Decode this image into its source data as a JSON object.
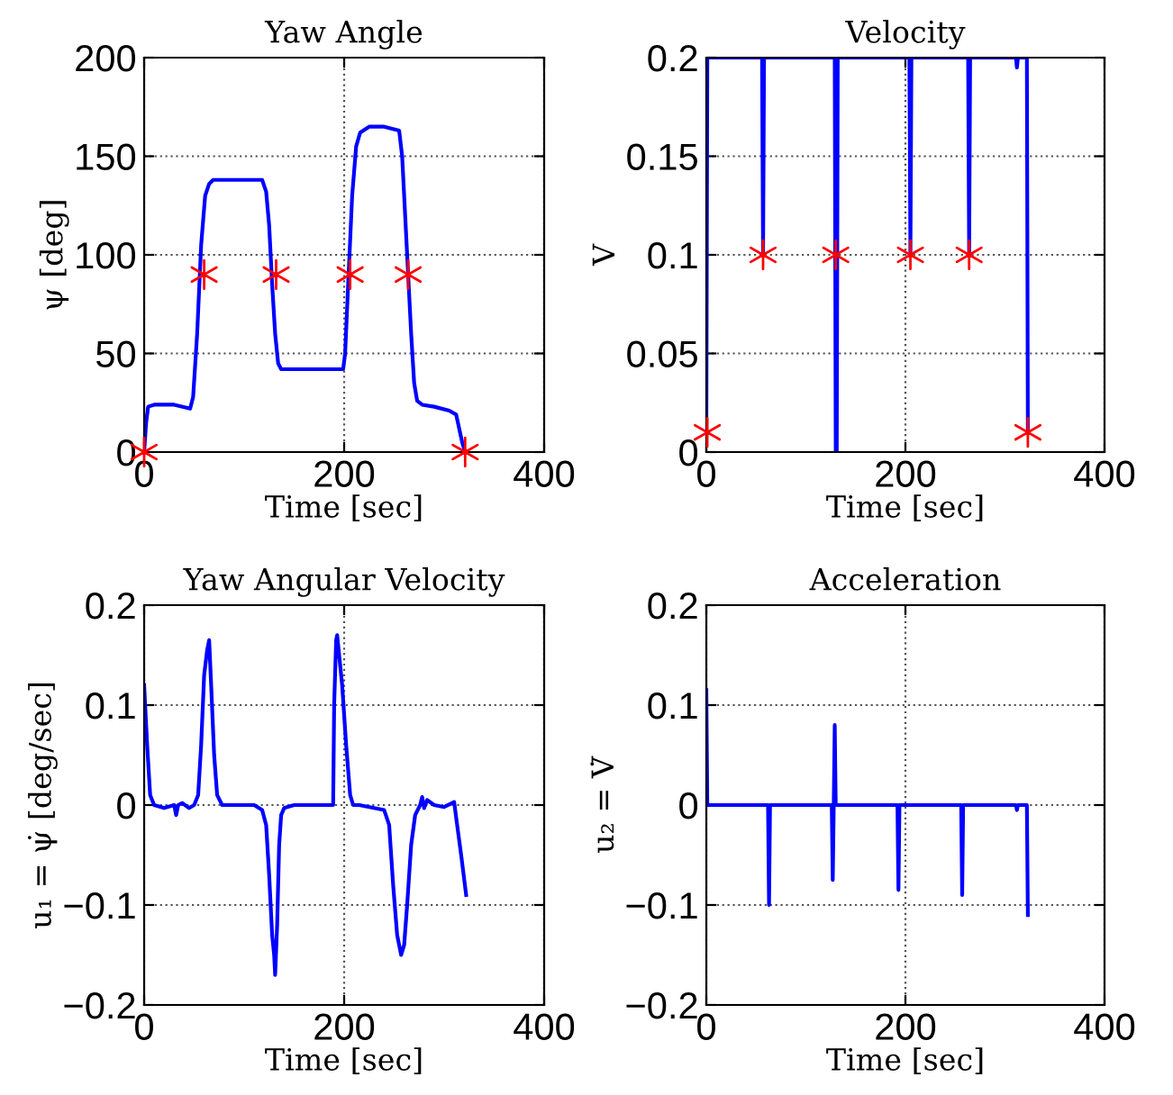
{
  "chart_data": [
    {
      "type": "line",
      "title": "Yaw Angle",
      "xlabel": "Time [sec]",
      "ylabel": "ψ [deg]",
      "xlim": [
        0,
        400
      ],
      "xticks": [
        0,
        200,
        400
      ],
      "ylim": [
        0,
        200
      ],
      "yticks": [
        0,
        50,
        100,
        150,
        200
      ],
      "grid": true,
      "line_style": "solid",
      "series": [
        {
          "color": "#0000ff",
          "marker": "none",
          "x": [
            0,
            2,
            4,
            10,
            30,
            46,
            49,
            53,
            57,
            61,
            65,
            69,
            80,
            100,
            118,
            122,
            125,
            128,
            131,
            134,
            137,
            150,
            170,
            199,
            201,
            204,
            208,
            212,
            216,
            225,
            240,
            255,
            258,
            261,
            264,
            267,
            270,
            273,
            278,
            290,
            305,
            312,
            315,
            318,
            321
          ],
          "values": [
            0,
            15,
            23,
            24,
            24,
            22,
            28,
            60,
            105,
            130,
            136,
            138,
            138,
            138,
            138,
            132,
            115,
            85,
            60,
            45,
            42,
            42,
            42,
            42,
            50,
            85,
            130,
            155,
            162,
            165,
            165,
            163,
            150,
            120,
            90,
            60,
            35,
            26,
            24,
            23,
            21,
            19,
            12,
            5,
            0
          ]
        },
        {
          "type": "scatter",
          "color": "#ff0000",
          "marker": "cross",
          "x": [
            0,
            60,
            132,
            206,
            264,
            321
          ],
          "values": [
            0,
            90,
            90,
            90,
            90,
            0
          ]
        }
      ]
    },
    {
      "type": "line",
      "title": "Velocity",
      "xlabel": "Time [sec]",
      "ylabel": "V",
      "xlim": [
        0,
        400
      ],
      "xticks": [
        0,
        200,
        400
      ],
      "ylim": [
        0,
        0.2
      ],
      "yticks": [
        0,
        0.05,
        0.1,
        0.15,
        0.2
      ],
      "grid": true,
      "line_style": "solid",
      "series": [
        {
          "color": "#0000ff",
          "marker": "none",
          "x": [
            0,
            1,
            56,
            57,
            58,
            129,
            130,
            131,
            132,
            204,
            205,
            206,
            263,
            264,
            265,
            311,
            312,
            313,
            322,
            323
          ],
          "values": [
            0.01,
            0.2,
            0.2,
            0.1,
            0.2,
            0.2,
            0,
            0,
            0.2,
            0.2,
            0.1,
            0.2,
            0.2,
            0.1,
            0.2,
            0.2,
            0.195,
            0.2,
            0.2,
            0.01
          ]
        },
        {
          "type": "scatter",
          "color": "#ff0000",
          "marker": "cross",
          "x": [
            1,
            57,
            130,
            205,
            264,
            323
          ],
          "values": [
            0.01,
            0.1,
            0.1,
            0.1,
            0.1,
            0.01
          ]
        }
      ]
    },
    {
      "type": "line",
      "title": "Yaw Angular Velocity",
      "xlabel": "Time [sec]",
      "ylabel": "u₁ = ψ̇ [deg/sec]",
      "xlim": [
        0,
        400
      ],
      "xticks": [
        0,
        200,
        400
      ],
      "ylim": [
        -0.2,
        0.2
      ],
      "yticks": [
        -0.2,
        -0.1,
        0,
        0.1,
        0.2
      ],
      "grid": true,
      "line_style": "solid",
      "series": [
        {
          "color": "#0000ff",
          "marker": "none",
          "x": [
            0,
            3,
            6,
            10,
            20,
            30,
            32,
            34,
            38,
            45,
            50,
            54,
            57,
            60,
            63,
            65,
            67,
            70,
            73,
            78,
            90,
            110,
            118,
            122,
            125,
            128,
            130,
            131,
            133,
            135,
            137,
            140,
            150,
            170,
            189,
            190,
            192,
            193,
            195,
            198,
            202,
            206,
            209,
            215,
            240,
            245,
            249,
            253,
            257,
            260,
            263,
            267,
            271,
            276,
            278,
            280,
            283,
            290,
            300,
            310,
            313,
            317,
            322
          ],
          "values": [
            0.12,
            0.06,
            0.01,
            0,
            -0.003,
            0,
            -0.01,
            0,
            0.002,
            -0.003,
            0,
            0.01,
            0.06,
            0.13,
            0.155,
            0.165,
            0.12,
            0.05,
            0.01,
            0,
            0,
            0,
            -0.005,
            -0.02,
            -0.07,
            -0.13,
            -0.15,
            -0.17,
            -0.12,
            -0.04,
            -0.01,
            -0.003,
            0,
            0,
            0,
            0.1,
            0.165,
            0.17,
            0.15,
            0.12,
            0.06,
            0.01,
            0,
            0,
            -0.005,
            -0.02,
            -0.08,
            -0.13,
            -0.15,
            -0.14,
            -0.1,
            -0.04,
            -0.01,
            0,
            0.008,
            -0.003,
            0.005,
            0,
            -0.002,
            0.003,
            -0.02,
            -0.05,
            -0.09
          ]
        }
      ]
    },
    {
      "type": "line",
      "title": "Acceleration",
      "xlabel": "Time [sec]",
      "ylabel": "u₂ = V̇",
      "xlim": [
        0,
        400
      ],
      "xticks": [
        0,
        200,
        400
      ],
      "ylim": [
        -0.2,
        0.2
      ],
      "yticks": [
        -0.2,
        -0.1,
        0,
        0.1,
        0.2
      ],
      "grid": true,
      "line_style": "solid",
      "series": [
        {
          "color": "#0000ff",
          "marker": "none",
          "x": [
            0,
            1,
            62,
            63,
            64,
            126,
            127,
            128,
            129,
            130,
            192,
            193,
            194,
            256,
            257,
            258,
            311,
            312,
            313,
            322,
            323
          ],
          "values": [
            0.115,
            0,
            0,
            -0.1,
            0,
            0,
            -0.075,
            0,
            0.08,
            0,
            0,
            -0.085,
            0,
            0,
            -0.09,
            0,
            0,
            -0.005,
            0,
            0,
            -0.11
          ]
        }
      ]
    }
  ]
}
